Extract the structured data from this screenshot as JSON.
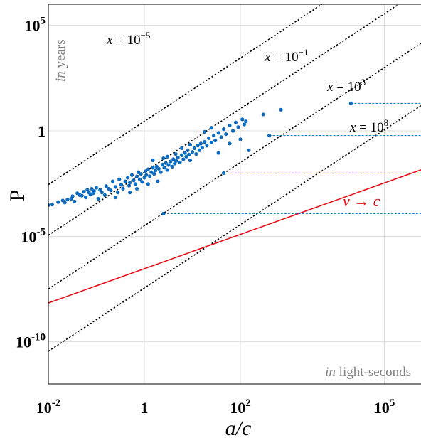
{
  "chart_data": {
    "type": "scatter",
    "title": "",
    "xlabel": "a/c",
    "ylabel": "P",
    "x_scale": "log",
    "y_scale": "log",
    "xlim": [
      0.01,
      1000000
    ],
    "ylim": [
      1e-12,
      1000000
    ],
    "grid": true,
    "x_ticks": [
      {
        "value": 0.01,
        "base": "10",
        "exp": "-2"
      },
      {
        "value": 1,
        "base": "1",
        "exp": ""
      },
      {
        "value": 100,
        "base": "10",
        "exp": "2"
      },
      {
        "value": 100000,
        "base": "10",
        "exp": "5"
      }
    ],
    "y_ticks": [
      {
        "value": 100000,
        "base": "10",
        "exp": "5"
      },
      {
        "value": 1,
        "base": "1",
        "exp": ""
      },
      {
        "value": 1e-05,
        "base": "10",
        "exp": "-5"
      },
      {
        "value": 1e-10,
        "base": "10",
        "exp": "-10"
      }
    ],
    "y_corner_note": {
      "italic": "in",
      "rest": " years"
    },
    "x_corner_note": {
      "italic": "in",
      "rest": " light-seconds"
    },
    "colors": {
      "points": "#0d6cbf",
      "v_to_c": "#e8101a",
      "constant_x": "#000000",
      "segments": "#0d6cbf"
    },
    "reference_lines": [
      {
        "text": "x = 10",
        "exp": "−5",
        "exponent": -5
      },
      {
        "text": "x = 10",
        "exp": "−1",
        "exponent": -1
      },
      {
        "text": "x = 10",
        "exp": "3",
        "exponent": 3
      },
      {
        "text": "x = 10",
        "exp": "8",
        "exponent": 8
      }
    ],
    "v_to_c_line": {
      "label_italic_v": "v",
      "label_arrow": " → ",
      "label_italic_c": "c",
      "x": [
        0.01,
        1000000
      ],
      "y": [
        6.9e-09,
        0.022
      ]
    },
    "horizontal_segments": [
      {
        "x_start": 20000,
        "y": 20
      },
      {
        "x_start": 400,
        "y": 0.6
      },
      {
        "x_start": 45,
        "y": 0.01
      },
      {
        "x_start": 2.5,
        "y": 0.00012
      }
    ],
    "points": [
      [
        0.01,
        0.0003
      ],
      [
        0.012,
        0.00032
      ],
      [
        0.016,
        0.00042
      ],
      [
        0.02,
        0.0005
      ],
      [
        0.022,
        0.0004
      ],
      [
        0.025,
        0.00055
      ],
      [
        0.03,
        0.0006
      ],
      [
        0.032,
        0.0008
      ],
      [
        0.035,
        0.00045
      ],
      [
        0.04,
        0.0011
      ],
      [
        0.045,
        0.0009
      ],
      [
        0.05,
        0.00085
      ],
      [
        0.055,
        0.0013
      ],
      [
        0.06,
        0.0007
      ],
      [
        0.065,
        0.0016
      ],
      [
        0.07,
        0.0012
      ],
      [
        0.075,
        0.00095
      ],
      [
        0.08,
        0.0018
      ],
      [
        0.085,
        0.0011
      ],
      [
        0.09,
        0.0014
      ],
      [
        0.1,
        0.002
      ],
      [
        0.11,
        0.0006
      ],
      [
        0.12,
        0.0016
      ],
      [
        0.13,
        0.0012
      ],
      [
        0.15,
        0.0009
      ],
      [
        0.16,
        0.0024
      ],
      [
        0.18,
        0.0018
      ],
      [
        0.2,
        0.0015
      ],
      [
        0.22,
        0.004
      ],
      [
        0.25,
        0.0022
      ],
      [
        0.28,
        0.0012
      ],
      [
        0.3,
        0.005
      ],
      [
        0.33,
        0.0028
      ],
      [
        0.36,
        0.0018
      ],
      [
        0.4,
        0.004
      ],
      [
        0.45,
        0.006
      ],
      [
        0.48,
        0.0025
      ],
      [
        0.5,
        0.0035
      ],
      [
        0.55,
        0.008
      ],
      [
        0.6,
        0.0045
      ],
      [
        0.65,
        0.003
      ],
      [
        0.7,
        0.007
      ],
      [
        0.75,
        0.011
      ],
      [
        0.8,
        0.005
      ],
      [
        0.85,
        0.009
      ],
      [
        0.9,
        0.0038
      ],
      [
        1.0,
        0.006
      ],
      [
        1.05,
        0.012
      ],
      [
        1.1,
        0.008
      ],
      [
        1.2,
        0.015
      ],
      [
        1.3,
        0.007
      ],
      [
        1.4,
        0.011
      ],
      [
        1.5,
        0.018
      ],
      [
        1.6,
        0.009
      ],
      [
        1.7,
        0.013
      ],
      [
        1.8,
        0.02
      ],
      [
        1.9,
        0.004
      ],
      [
        2.0,
        0.016
      ],
      [
        2.2,
        0.011
      ],
      [
        2.4,
        0.025
      ],
      [
        2.6,
        0.018
      ],
      [
        2.8,
        0.03
      ],
      [
        3.0,
        0.014
      ],
      [
        3.2,
        0.024
      ],
      [
        3.5,
        0.035
      ],
      [
        3.8,
        0.02
      ],
      [
        4.0,
        0.045
      ],
      [
        4.3,
        0.028
      ],
      [
        4.6,
        0.038
      ],
      [
        5.0,
        0.055
      ],
      [
        5.5,
        0.032
      ],
      [
        6.0,
        0.07
      ],
      [
        6.5,
        0.045
      ],
      [
        7.0,
        0.09
      ],
      [
        7.5,
        0.06
      ],
      [
        8.0,
        0.12
      ],
      [
        8.5,
        0.075
      ],
      [
        9.0,
        0.04
      ],
      [
        10,
        0.1
      ],
      [
        11,
        0.15
      ],
      [
        12,
        0.08
      ],
      [
        13,
        0.2
      ],
      [
        14,
        0.12
      ],
      [
        15,
        0.25
      ],
      [
        16,
        0.16
      ],
      [
        18,
        0.3
      ],
      [
        20,
        0.2
      ],
      [
        22,
        0.45
      ],
      [
        25,
        0.28
      ],
      [
        28,
        0.6
      ],
      [
        30,
        0.35
      ],
      [
        35,
        0.8
      ],
      [
        40,
        0.5
      ],
      [
        45,
        1.2
      ],
      [
        50,
        0.7
      ],
      [
        60,
        1.8
      ],
      [
        70,
        1.0
      ],
      [
        80,
        2.5
      ],
      [
        90,
        1.5
      ],
      [
        110,
        3.5
      ],
      [
        120,
        2.0
      ],
      [
        130,
        2.8
      ],
      [
        100,
        0.4
      ],
      [
        60,
        0.25
      ],
      [
        150,
        0.12
      ],
      [
        300,
        6
      ],
      [
        700,
        10
      ],
      [
        0.5,
        0.0012
      ],
      [
        0.7,
        0.0018
      ],
      [
        1.2,
        0.003
      ],
      [
        0.25,
        0.0007
      ],
      [
        2.5,
        0.05
      ],
      [
        4.5,
        0.08
      ],
      [
        6.0,
        0.15
      ],
      [
        9.0,
        0.22
      ],
      [
        3.0,
        0.06
      ],
      [
        1.5,
        0.04
      ],
      [
        18,
        0.9
      ],
      [
        25,
        1.4
      ],
      [
        35,
        0.09
      ]
    ]
  }
}
